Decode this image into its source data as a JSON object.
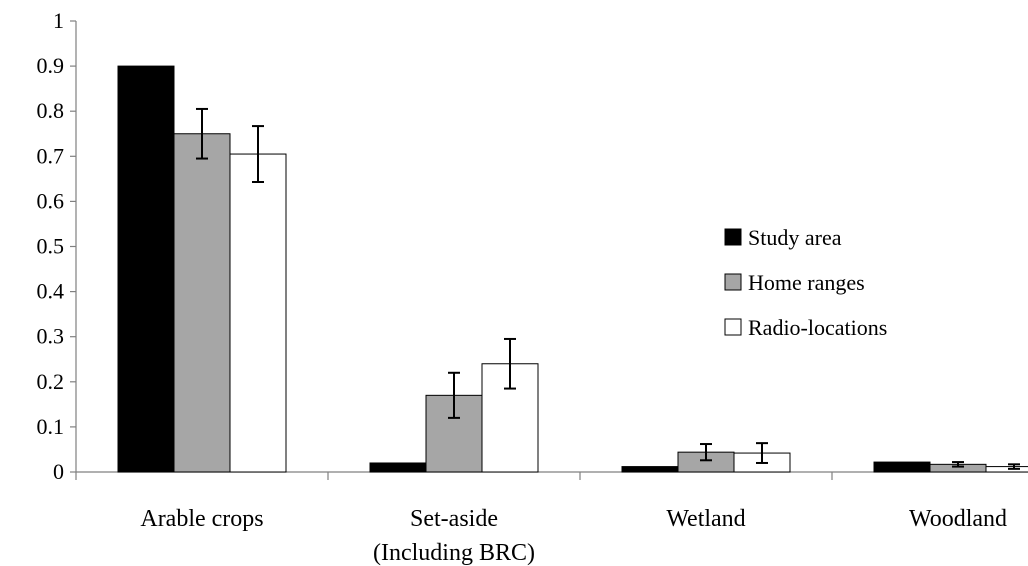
{
  "chart_data": {
    "type": "bar",
    "title": "",
    "xlabel": "",
    "ylabel": "",
    "ylim": [
      0,
      1
    ],
    "yticks": [
      "0",
      "0.1",
      "0.2",
      "0.3",
      "0.4",
      "0.5",
      "0.6",
      "0.7",
      "0.8",
      "0.9",
      "1"
    ],
    "categories": [
      [
        "Arable crops"
      ],
      [
        "Set-aside",
        "(Including BRC)"
      ],
      [
        "Wetland"
      ],
      [
        "Woodland"
      ]
    ],
    "series": [
      {
        "name": "Study area",
        "color": "#000000",
        "values": [
          0.9,
          0.02,
          0.012,
          0.022
        ],
        "errors": [
          null,
          null,
          null,
          null
        ]
      },
      {
        "name": "Home ranges",
        "color": "#a6a6a6",
        "values": [
          0.75,
          0.17,
          0.044,
          0.017
        ],
        "errors": [
          0.055,
          0.05,
          0.018,
          0.005
        ]
      },
      {
        "name": "Radio-locations",
        "color": "#ffffff",
        "values": [
          0.705,
          0.24,
          0.042,
          0.012
        ],
        "errors": [
          0.062,
          0.055,
          0.022,
          0.005
        ]
      }
    ],
    "legend_position": "right",
    "grid": false
  }
}
